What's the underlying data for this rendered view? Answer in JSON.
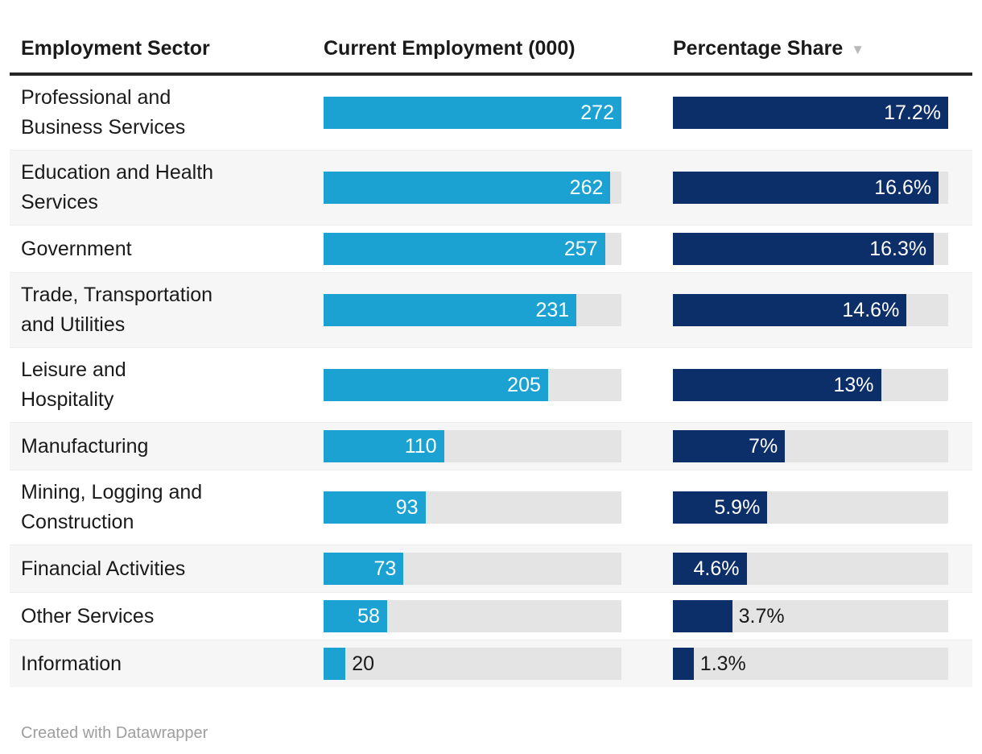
{
  "table": {
    "columns": [
      {
        "label": "Employment Sector"
      },
      {
        "label": "Current Employment (000)"
      },
      {
        "label": "Percentage Share",
        "sort_icon": "▼",
        "sorted": "descending"
      }
    ],
    "rows": [
      {
        "sector": "Professional and Business Services",
        "sector_lines": [
          "Professional and",
          "Business Services"
        ],
        "employment": 272,
        "employment_label": "272",
        "share": 17.2,
        "share_label": "17.2%"
      },
      {
        "sector": "Education and Health Services",
        "sector_lines": [
          "Education and Health",
          "Services"
        ],
        "employment": 262,
        "employment_label": "262",
        "share": 16.6,
        "share_label": "16.6%"
      },
      {
        "sector": "Government",
        "sector_lines": [
          "Government"
        ],
        "employment": 257,
        "employment_label": "257",
        "share": 16.3,
        "share_label": "16.3%"
      },
      {
        "sector": "Trade, Transportation and Utilities",
        "sector_lines": [
          "Trade, Transportation",
          "and Utilities"
        ],
        "employment": 231,
        "employment_label": "231",
        "share": 14.6,
        "share_label": "14.6%"
      },
      {
        "sector": "Leisure and Hospitality",
        "sector_lines": [
          "Leisure and",
          "Hospitality"
        ],
        "employment": 205,
        "employment_label": "205",
        "share": 13,
        "share_label": "13%"
      },
      {
        "sector": "Manufacturing",
        "sector_lines": [
          "Manufacturing"
        ],
        "employment": 110,
        "employment_label": "110",
        "share": 7,
        "share_label": "7%"
      },
      {
        "sector": "Mining, Logging and Construction",
        "sector_lines": [
          "Mining, Logging and",
          "Construction"
        ],
        "employment": 93,
        "employment_label": "93",
        "share": 5.9,
        "share_label": "5.9%"
      },
      {
        "sector": "Financial Activities",
        "sector_lines": [
          "Financial Activities"
        ],
        "employment": 73,
        "employment_label": "73",
        "share": 4.6,
        "share_label": "4.6%"
      },
      {
        "sector": "Other Services",
        "sector_lines": [
          "Other Services"
        ],
        "employment": 58,
        "employment_label": "58",
        "share": 3.7,
        "share_label": "3.7%"
      },
      {
        "sector": "Information",
        "sector_lines": [
          "Information"
        ],
        "employment": 20,
        "employment_label": "20",
        "share": 1.3,
        "share_label": "1.3%"
      }
    ]
  },
  "footer": {
    "attribution": "Created with Datawrapper"
  },
  "colors": {
    "employment_bar": "#1ba2d2",
    "share_bar": "#0c2e69",
    "bar_track": "#e4e4e4",
    "row_stripe": "#f6f6f6",
    "header_rule": "#262626",
    "sort_arrow": "#b8b8b8",
    "footer_text": "#9e9e9e",
    "text": "#1a1a1a"
  },
  "chart_data": {
    "type": "table",
    "title": "",
    "columns": [
      "Employment Sector",
      "Current Employment (000)",
      "Percentage Share"
    ],
    "categories": [
      "Professional and Business Services",
      "Education and Health Services",
      "Government",
      "Trade, Transportation and Utilities",
      "Leisure and Hospitality",
      "Manufacturing",
      "Mining, Logging and Construction",
      "Financial Activities",
      "Other Services",
      "Information"
    ],
    "series": [
      {
        "name": "Current Employment (000)",
        "type": "bar",
        "values": [
          272,
          262,
          257,
          231,
          205,
          110,
          93,
          73,
          58,
          20
        ],
        "xlim": [
          0,
          272
        ],
        "color": "#1ba2d2"
      },
      {
        "name": "Percentage Share",
        "type": "bar",
        "values": [
          17.2,
          16.6,
          16.3,
          14.6,
          13,
          7,
          5.9,
          4.6,
          3.7,
          1.3
        ],
        "xlim": [
          0,
          17.2
        ],
        "color": "#0c2e69",
        "unit": "%"
      }
    ],
    "sort": {
      "column": "Percentage Share",
      "direction": "descending"
    },
    "layout_hints": {
      "bars_embedded_in_table": true,
      "value_labels": "inside-end, outside when bar too short",
      "row_striping": true
    }
  }
}
